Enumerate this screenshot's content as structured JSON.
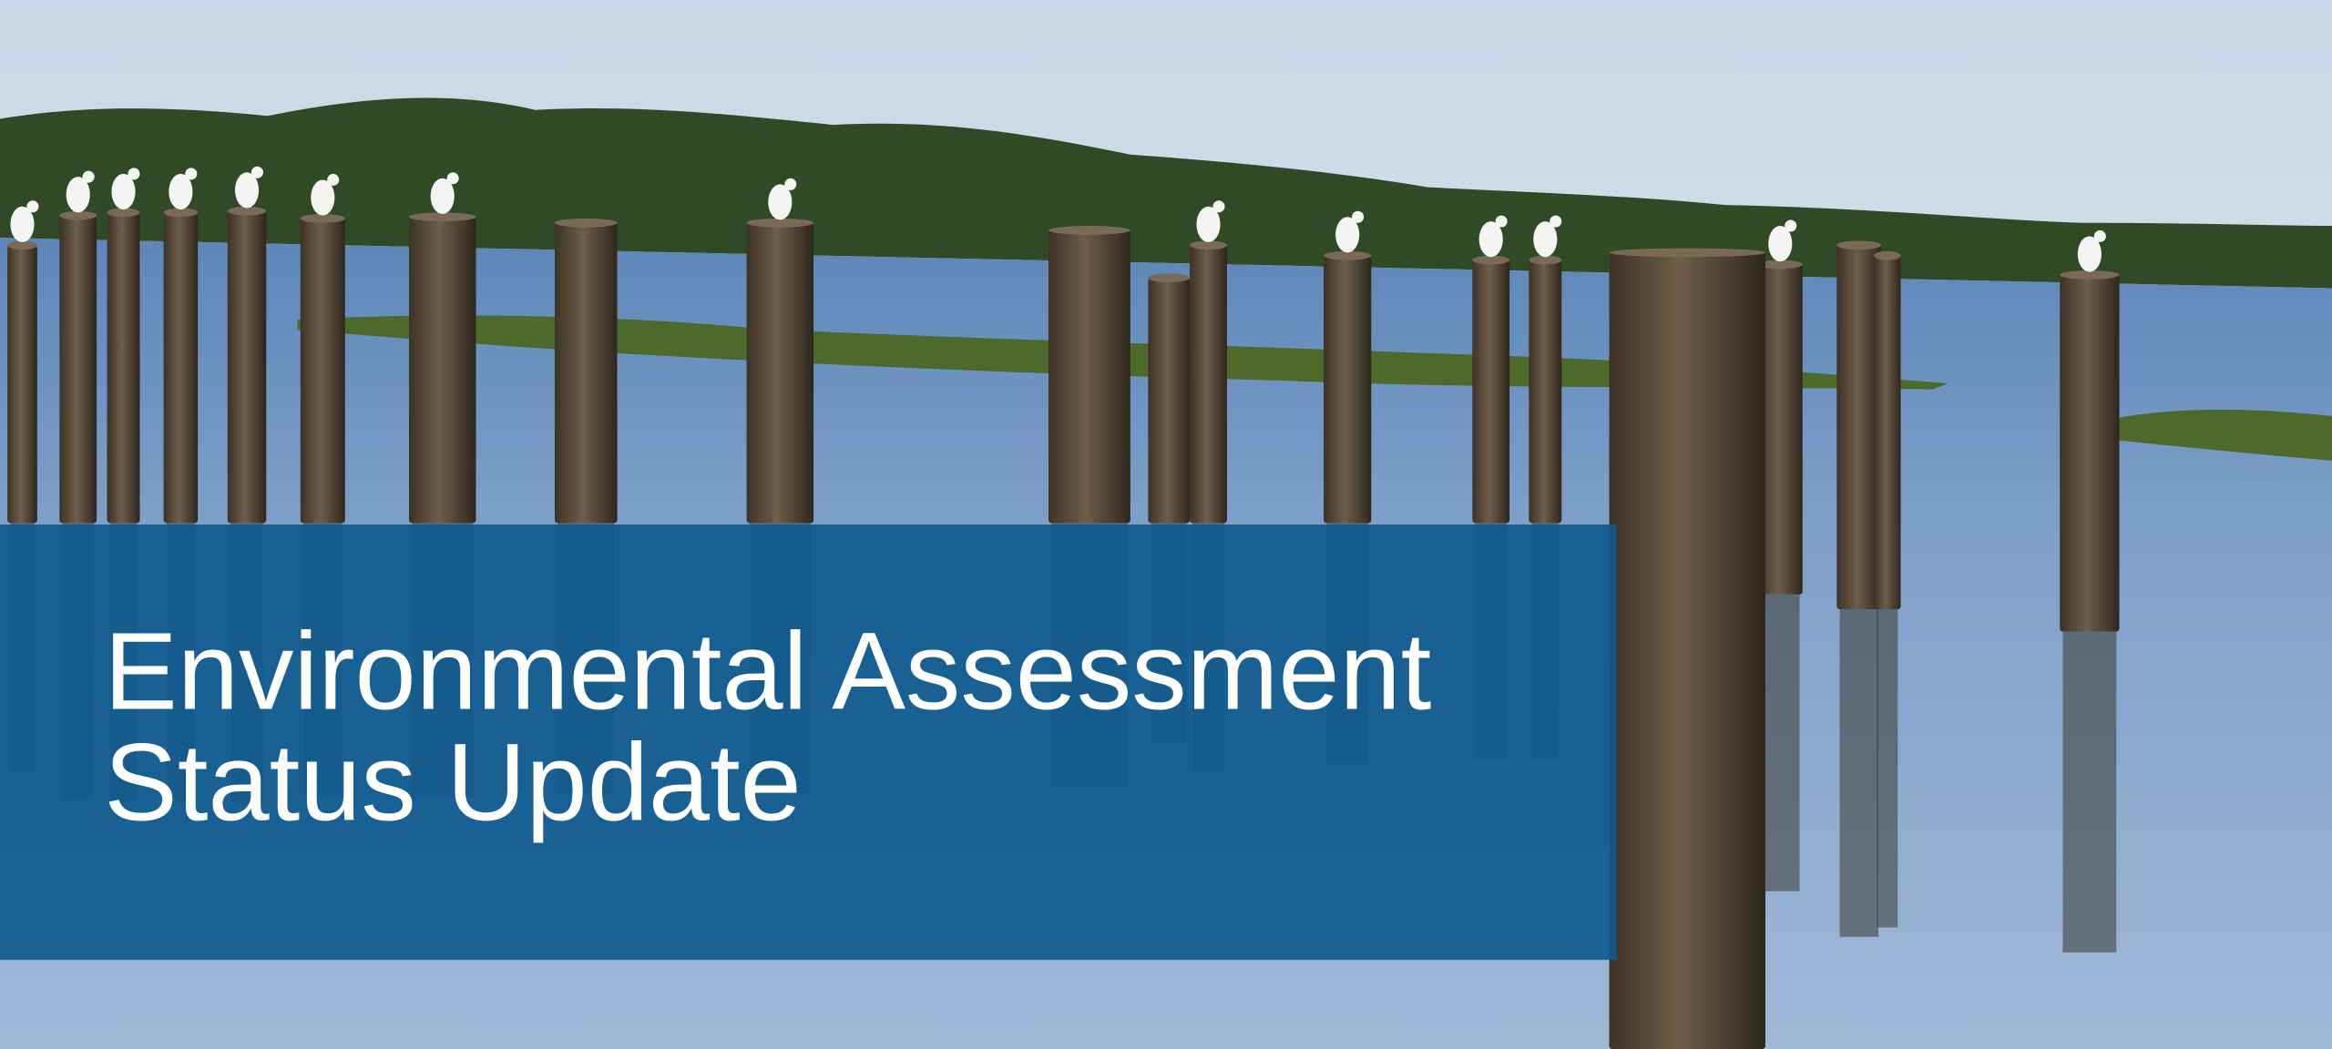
{
  "banner": {
    "title_lines": [
      "Environmental Assessment",
      "Status Update"
    ]
  }
}
